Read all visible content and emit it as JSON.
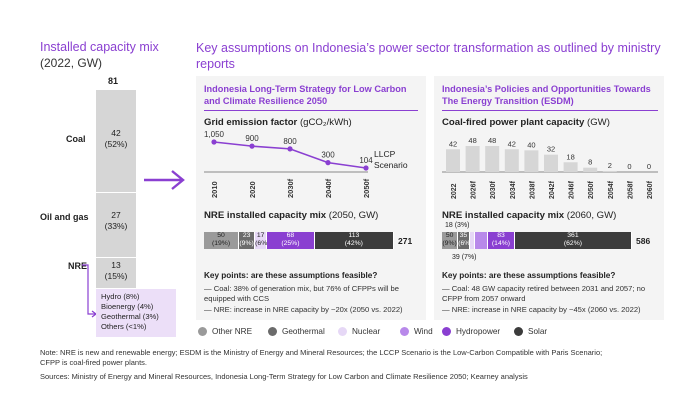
{
  "left_title": "Installed capacity mix",
  "left_subtitle": "(2022, GW)",
  "main_title": "Key assumptions on Indonesia’s power sector transformation as outlined by ministry reports",
  "colors": {
    "purple": "#8a3fd1",
    "other_nre": "#9a9a9a",
    "geothermal": "#6b6b6b",
    "nuclear": "#e6d8f6",
    "wind": "#b889ea",
    "hydropower": "#8a3fd1",
    "solar": "#3c3c3c",
    "stack_gray": "#d6d6d6",
    "nre_box": "#ecdff8"
  },
  "stacked": {
    "total": "81",
    "segments": [
      {
        "label": "Coal",
        "value": "42",
        "pct": "(52%)",
        "gw": 42
      },
      {
        "label": "Oil and gas",
        "value": "27",
        "pct": "(33%)",
        "gw": 27
      },
      {
        "label": "NRE",
        "value": "13",
        "pct": "(15%)",
        "gw": 13
      }
    ],
    "nre_breakdown": [
      "Hydro (8%)",
      "Bioenergy (4%)",
      "Geothermal (3%)",
      "Others (<1%)"
    ]
  },
  "panel1": {
    "title": "Indonesia Long-Term Strategy for Low Carbon and Climate Resilience 2050",
    "line_title_bold": "Grid emission factor",
    "line_title_light": "(gCO₂/kWh)",
    "scenario_label_1": "LLCP",
    "scenario_label_2": "Scenario",
    "bar_title_bold": "NRE installed capacity mix",
    "bar_title_light": "(2050, GW)",
    "bar_total": "271",
    "key_points_head": "Key points: are these assumptions feasible?",
    "key_points": [
      "— Coal: 38% of generation mix, but 76% of CFPPs will be equipped with CCS",
      "— NRE: increase in NRE capacity by ~20x (2050 vs. 2022)"
    ]
  },
  "panel2": {
    "title": "Indonesia’s Policies and Opportunities Towards The Energy Transition (ESDM)",
    "bar_chart_title_bold": "Coal-fired power plant capacity",
    "bar_chart_title_light": "(GW)",
    "nre_title_bold": "NRE installed capacity mix",
    "nre_title_light": "(2060, GW)",
    "bar_total": "586",
    "callout_top": "18 (3%)",
    "callout_bottom": "39 (7%)",
    "key_points_head": "Key points: are these assumptions feasible?",
    "key_points": [
      "— Coal: 48 GW capacity retired between 2031 and 2057; no CFPP from 2057 onward",
      "— NRE: increase in NRE capacity by ~45x (2060 vs. 2022)"
    ]
  },
  "legend": [
    "Other NRE",
    "Geothermal",
    "Nuclear",
    "Wind",
    "Hydropower",
    "Solar"
  ],
  "notes": [
    "Note: NRE is new and renewable energy; ESDM is the Ministry of Energy and Mineral Resources; the LCCP Scenario is the Low-Carbon Compatible with Paris Scenario;",
    "CFPP is coal-fired power plants.",
    "Sources: Ministry of Energy and Mineral Resources, Indonesia Long-Term Strategy for Low Carbon and Climate Resilience 2050; Kearney analysis"
  ],
  "chart_data": [
    {
      "type": "bar",
      "title": "Installed capacity mix (2022, GW)",
      "categories": [
        "Coal",
        "Oil and gas",
        "NRE"
      ],
      "values": [
        42,
        27,
        13
      ],
      "total": 81
    },
    {
      "type": "line",
      "title": "Grid emission factor (gCO2/kWh)",
      "x": [
        "2010",
        "2020",
        "2030f",
        "2040f",
        "2050f"
      ],
      "values": [
        1050,
        900,
        800,
        300,
        104
      ],
      "value_labels": [
        "1,050",
        "900",
        "800",
        "300",
        "104"
      ]
    },
    {
      "type": "bar",
      "title": "NRE installed capacity mix (2050, GW)",
      "series": [
        {
          "name": "Other NRE",
          "value": 50,
          "pct": "(19%)"
        },
        {
          "name": "Geothermal",
          "value": 23,
          "pct": "(9%)"
        },
        {
          "name": "Nuclear",
          "value": 17,
          "pct": "(6%)"
        },
        {
          "name": "Hydropower",
          "value": 68,
          "pct": "(25%)"
        },
        {
          "name": "Solar",
          "value": 113,
          "pct": "(42%)"
        }
      ],
      "total": 271
    },
    {
      "type": "bar",
      "title": "Coal-fired power plant capacity (GW)",
      "categories": [
        "2022",
        "2026f",
        "2030f",
        "2034f",
        "2038f",
        "2042f",
        "2046f",
        "2050f",
        "2054f",
        "2058f",
        "2060f"
      ],
      "values": [
        42,
        48,
        48,
        42,
        40,
        32,
        18,
        8,
        2,
        0,
        0
      ]
    },
    {
      "type": "bar",
      "title": "NRE installed capacity mix (2060, GW)",
      "series": [
        {
          "name": "Other NRE",
          "value": 50,
          "pct": "(9%)"
        },
        {
          "name": "Geothermal",
          "value": 35,
          "pct": "(6%)"
        },
        {
          "name": "Nuclear",
          "value": 18,
          "pct": "(3%)"
        },
        {
          "name": "Wind",
          "value": 39,
          "pct": "(7%)"
        },
        {
          "name": "Hydropower",
          "value": 83,
          "pct": "(14%)"
        },
        {
          "name": "Solar",
          "value": 361,
          "pct": "(62%)"
        }
      ],
      "total": 586
    }
  ]
}
